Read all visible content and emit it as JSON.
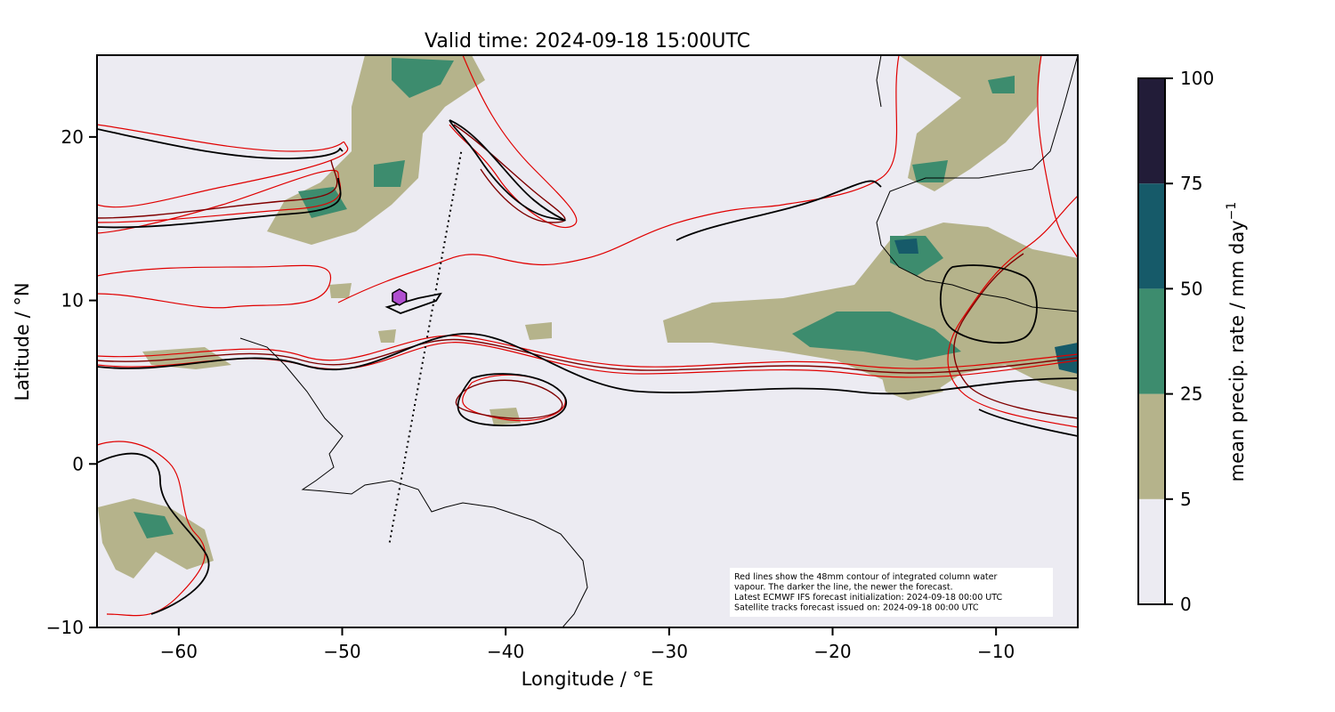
{
  "chart_data": {
    "type": "map",
    "title": "Valid time: 2024-09-18 15:00UTC",
    "xlabel": "Longitude / °E",
    "ylabel": "Latitude / °N",
    "xlim": [
      -65,
      -5
    ],
    "ylim": [
      -10,
      25
    ],
    "xticks": [
      {
        "value": -60,
        "label": "−60"
      },
      {
        "value": -50,
        "label": "−50"
      },
      {
        "value": -40,
        "label": "−40"
      },
      {
        "value": -30,
        "label": "−30"
      },
      {
        "value": -20,
        "label": "−20"
      },
      {
        "value": -10,
        "label": "−10"
      }
    ],
    "yticks": [
      {
        "value": -10,
        "label": "−10"
      },
      0,
      10,
      20
    ],
    "colorbar": {
      "label": "mean precip. rate / mm day",
      "label_exponent": "−1",
      "bounds": [
        0,
        5,
        25,
        50,
        75,
        100
      ],
      "colors": [
        "#ecebf2",
        "#b5b38b",
        "#3d8c6e",
        "#165a69",
        "#221c38"
      ]
    },
    "satellite_track": {
      "x": [
        -47.1,
        -42.7
      ],
      "y": [
        -4.8,
        19.2
      ]
    },
    "marker": {
      "x": -46.5,
      "y": 10.2,
      "color": "#b04fd0"
    },
    "annotation": [
      "Red lines show the 48mm contour of integrated column water",
      "vapour. The darker the line, the newer the forecast.",
      "Latest ECMWF IFS forecast initialization: 2024-09-18 00:00 UTC",
      "Satellite tracks forecast issued on: 2024-09-18 00:00 UTC"
    ]
  }
}
